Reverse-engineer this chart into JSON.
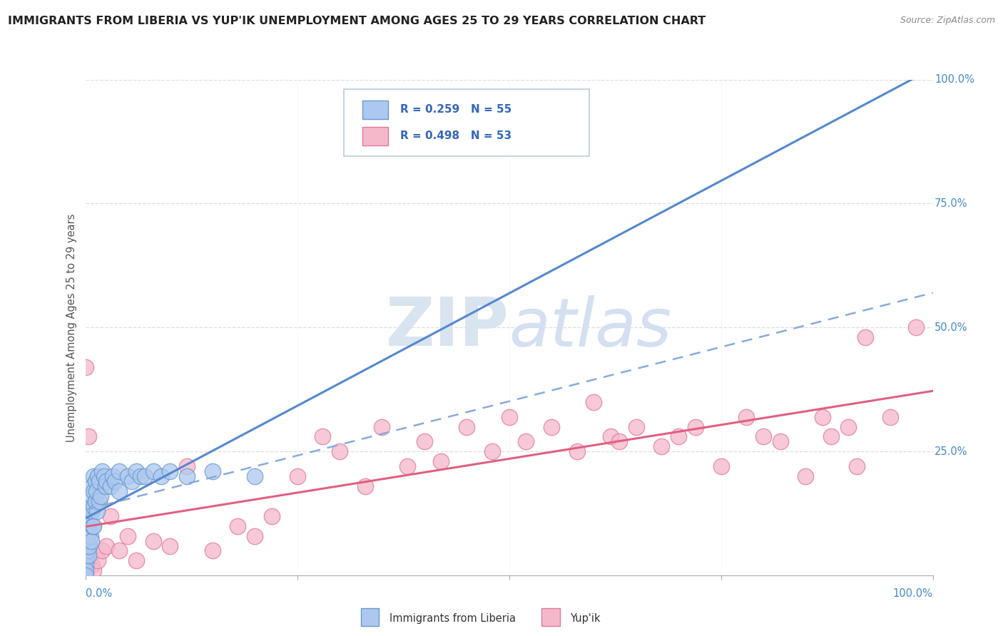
{
  "title": "IMMIGRANTS FROM LIBERIA VS YUP'IK UNEMPLOYMENT AMONG AGES 25 TO 29 YEARS CORRELATION CHART",
  "source": "Source: ZipAtlas.com",
  "ylabel": "Unemployment Among Ages 25 to 29 years",
  "legend_label1": "Immigrants from Liberia",
  "legend_label2": "Yup'ik",
  "r1": 0.259,
  "n1": 55,
  "r2": 0.498,
  "n2": 53,
  "color_blue_fill": "#adc8f0",
  "color_blue_edge": "#6699cc",
  "color_pink_fill": "#f5b8cb",
  "color_pink_edge": "#e07898",
  "color_blue_line": "#5588cc",
  "color_pink_line": "#e06080",
  "color_dashed_line": "#88aadd",
  "background_color": "#ffffff",
  "grid_color": "#dddddd",
  "blue_scatter_x": [
    0.0,
    0.0,
    0.0,
    0.0,
    0.0,
    0.002,
    0.002,
    0.003,
    0.003,
    0.003,
    0.004,
    0.004,
    0.005,
    0.005,
    0.005,
    0.005,
    0.006,
    0.006,
    0.007,
    0.008,
    0.008,
    0.008,
    0.009,
    0.01,
    0.01,
    0.01,
    0.01,
    0.012,
    0.012,
    0.013,
    0.014,
    0.015,
    0.016,
    0.016,
    0.018,
    0.02,
    0.022,
    0.024,
    0.025,
    0.03,
    0.032,
    0.035,
    0.04,
    0.04,
    0.05,
    0.055,
    0.06,
    0.065,
    0.07,
    0.08,
    0.09,
    0.1,
    0.12,
    0.15,
    0.2
  ],
  "blue_scatter_y": [
    0.04,
    0.03,
    0.02,
    0.01,
    0.0,
    0.1,
    0.08,
    0.07,
    0.06,
    0.05,
    0.09,
    0.04,
    0.13,
    0.11,
    0.09,
    0.06,
    0.14,
    0.08,
    0.07,
    0.18,
    0.16,
    0.13,
    0.1,
    0.2,
    0.17,
    0.14,
    0.1,
    0.19,
    0.15,
    0.17,
    0.13,
    0.2,
    0.19,
    0.15,
    0.16,
    0.21,
    0.2,
    0.18,
    0.19,
    0.18,
    0.2,
    0.19,
    0.21,
    0.17,
    0.2,
    0.19,
    0.21,
    0.2,
    0.2,
    0.21,
    0.2,
    0.21,
    0.2,
    0.21,
    0.2
  ],
  "pink_scatter_x": [
    0.0,
    0.002,
    0.004,
    0.006,
    0.008,
    0.01,
    0.015,
    0.02,
    0.025,
    0.03,
    0.04,
    0.05,
    0.06,
    0.08,
    0.1,
    0.12,
    0.15,
    0.18,
    0.2,
    0.22,
    0.25,
    0.28,
    0.3,
    0.33,
    0.35,
    0.38,
    0.4,
    0.42,
    0.45,
    0.48,
    0.5,
    0.52,
    0.55,
    0.58,
    0.6,
    0.62,
    0.63,
    0.65,
    0.68,
    0.7,
    0.72,
    0.75,
    0.78,
    0.8,
    0.82,
    0.85,
    0.87,
    0.88,
    0.9,
    0.91,
    0.92,
    0.95,
    0.98
  ],
  "pink_scatter_y": [
    0.42,
    0.02,
    0.28,
    0.04,
    0.02,
    0.01,
    0.03,
    0.05,
    0.06,
    0.12,
    0.05,
    0.08,
    0.03,
    0.07,
    0.06,
    0.22,
    0.05,
    0.1,
    0.08,
    0.12,
    0.2,
    0.28,
    0.25,
    0.18,
    0.3,
    0.22,
    0.27,
    0.23,
    0.3,
    0.25,
    0.32,
    0.27,
    0.3,
    0.25,
    0.35,
    0.28,
    0.27,
    0.3,
    0.26,
    0.28,
    0.3,
    0.22,
    0.32,
    0.28,
    0.27,
    0.2,
    0.32,
    0.28,
    0.3,
    0.22,
    0.48,
    0.32,
    0.5
  ]
}
